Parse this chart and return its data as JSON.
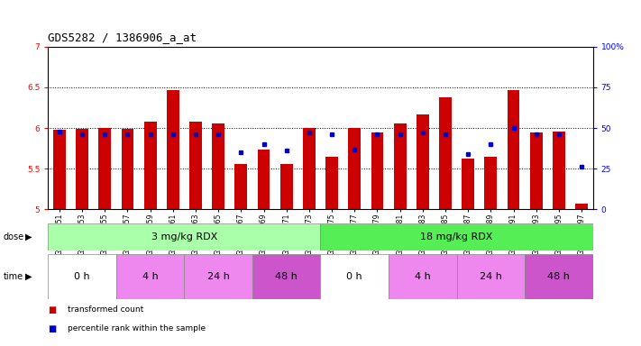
{
  "title": "GDS5282 / 1386906_a_at",
  "samples": [
    "GSM306951",
    "GSM306953",
    "GSM306955",
    "GSM306957",
    "GSM306959",
    "GSM306961",
    "GSM306963",
    "GSM306965",
    "GSM306967",
    "GSM306969",
    "GSM306971",
    "GSM306973",
    "GSM306975",
    "GSM306977",
    "GSM306979",
    "GSM306981",
    "GSM306983",
    "GSM306985",
    "GSM306987",
    "GSM306989",
    "GSM306991",
    "GSM306993",
    "GSM306995",
    "GSM306997"
  ],
  "transformed_counts": [
    5.98,
    5.99,
    6.0,
    5.99,
    6.08,
    6.47,
    6.08,
    6.06,
    5.56,
    5.73,
    5.56,
    6.0,
    5.65,
    6.0,
    5.95,
    6.06,
    6.17,
    6.38,
    5.62,
    5.65,
    6.47,
    5.94,
    5.96,
    5.07
  ],
  "percentile_ranks": [
    48,
    46,
    46,
    46,
    46,
    46,
    46,
    46,
    35,
    40,
    36,
    47,
    46,
    37,
    46,
    46,
    47,
    46,
    34,
    40,
    50,
    46,
    46,
    26
  ],
  "ylim_left": [
    5.0,
    7.0
  ],
  "ylim_right": [
    0,
    100
  ],
  "yticks_left": [
    5.0,
    5.5,
    6.0,
    6.5,
    7.0
  ],
  "yticks_right": [
    0,
    25,
    50,
    75,
    100
  ],
  "ytick_labels_left": [
    "5",
    "5.5",
    "6",
    "6.5",
    "7"
  ],
  "ytick_labels_right": [
    "0",
    "25",
    "50",
    "75",
    "100%"
  ],
  "bar_color": "#cc0000",
  "dot_color": "#0000cc",
  "bar_bottom": 5.0,
  "dose_groups": [
    {
      "label": "3 mg/kg RDX",
      "start": 0,
      "end": 12,
      "color": "#aaffaa"
    },
    {
      "label": "18 mg/kg RDX",
      "start": 12,
      "end": 24,
      "color": "#55ee55"
    }
  ],
  "time_groups": [
    {
      "label": "0 h",
      "start": 0,
      "end": 3,
      "color": "#ffffff"
    },
    {
      "label": "4 h",
      "start": 3,
      "end": 6,
      "color": "#ee88ee"
    },
    {
      "label": "24 h",
      "start": 6,
      "end": 9,
      "color": "#ee88ee"
    },
    {
      "label": "48 h",
      "start": 9,
      "end": 12,
      "color": "#cc55cc"
    },
    {
      "label": "0 h",
      "start": 12,
      "end": 15,
      "color": "#ffffff"
    },
    {
      "label": "4 h",
      "start": 15,
      "end": 18,
      "color": "#ee88ee"
    },
    {
      "label": "24 h",
      "start": 18,
      "end": 21,
      "color": "#ee88ee"
    },
    {
      "label": "48 h",
      "start": 21,
      "end": 24,
      "color": "#cc55cc"
    }
  ],
  "background_color": "#ffffff",
  "title_fontsize": 9,
  "tick_fontsize": 6.5,
  "label_fontsize": 8,
  "bar_width": 0.55
}
